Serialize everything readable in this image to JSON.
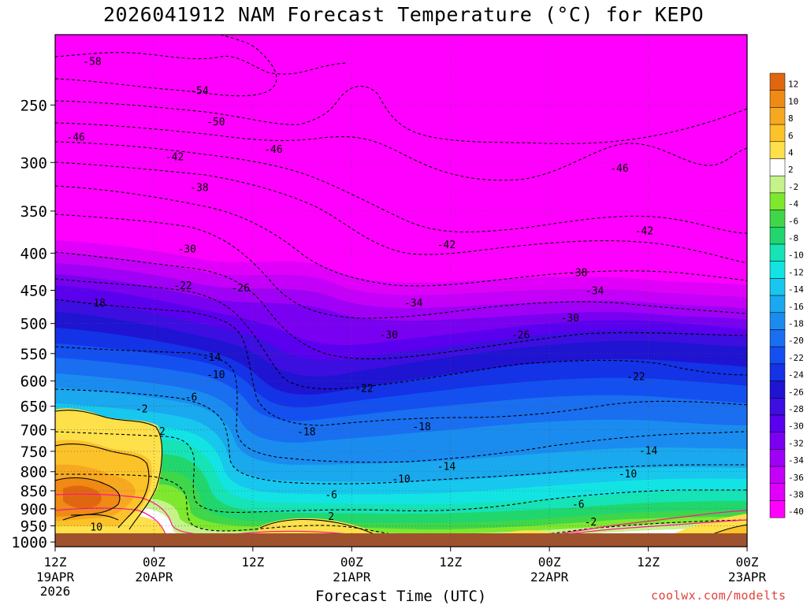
{
  "chart_data": {
    "type": "time-height contour (filled)",
    "title": "2026041912 NAM Forecast Temperature (°C) for KEPO",
    "xlabel": "Forecast Time (UTC)",
    "ylabel": "Pressure (hPa)",
    "y_ticks": [
      250,
      300,
      350,
      400,
      450,
      500,
      550,
      600,
      650,
      700,
      750,
      800,
      850,
      900,
      950,
      1000
    ],
    "ylim": [
      1015,
      200
    ],
    "x_ticks": [
      {
        "hour": 0,
        "line1": "12Z",
        "line2": "19APR",
        "line3": "2026"
      },
      {
        "hour": 12,
        "line1": "00Z",
        "line2": "20APR"
      },
      {
        "hour": 24,
        "line1": "12Z",
        "line2": ""
      },
      {
        "hour": 36,
        "line1": "00Z",
        "line2": "21APR"
      },
      {
        "hour": 48,
        "line1": "12Z",
        "line2": ""
      },
      {
        "hour": 60,
        "line1": "00Z",
        "line2": "22APR"
      },
      {
        "hour": 72,
        "line1": "12Z",
        "line2": ""
      },
      {
        "hour": 84,
        "line1": "00Z",
        "line2": "23APR"
      }
    ],
    "xlim": [
      0,
      84
    ],
    "colorbar": {
      "levels": [
        "12",
        "10",
        "8",
        "6",
        "4",
        "2",
        "-2",
        "-4",
        "-6",
        "-8",
        "-10",
        "-12",
        "-14",
        "-16",
        "-18",
        "-20",
        "-22",
        "-24",
        "-26",
        "-28",
        "-30",
        "-32",
        "-34",
        "-36",
        "-38",
        "-40"
      ],
      "colors": [
        "#e0670f",
        "#ef8a14",
        "#f6a820",
        "#fbc22a",
        "#fde04a",
        "#ffffff",
        "#c6f28a",
        "#7ee82e",
        "#3fd64a",
        "#21d66d",
        "#16e3b6",
        "#14e3e3",
        "#17c7ee",
        "#1aa8ee",
        "#1a8cf0",
        "#1a6ef0",
        "#1450f0",
        "#1432e6",
        "#1e14d2",
        "#3c0ee0",
        "#5a00ee",
        "#7a00f2",
        "#a000f6",
        "#c400f8",
        "#e000fa",
        "#ff00ff"
      ]
    },
    "contour_labels": [
      {
        "text": "-58",
        "hour": 4.5,
        "p": 218
      },
      {
        "text": "-54",
        "hour": 17.5,
        "p": 239
      },
      {
        "text": "-50",
        "hour": 19.5,
        "p": 264
      },
      {
        "text": "-46",
        "hour": 2.5,
        "p": 277
      },
      {
        "text": "-46",
        "hour": 26.5,
        "p": 288
      },
      {
        "text": "-46",
        "hour": 68.5,
        "p": 306
      },
      {
        "text": "-42",
        "hour": 14.5,
        "p": 295
      },
      {
        "text": "-42",
        "hour": 47.5,
        "p": 390
      },
      {
        "text": "-42",
        "hour": 71.5,
        "p": 373
      },
      {
        "text": "-38",
        "hour": 17.5,
        "p": 325
      },
      {
        "text": "-38",
        "hour": 63.5,
        "p": 426
      },
      {
        "text": "-34",
        "hour": 43.5,
        "p": 469
      },
      {
        "text": "-34",
        "hour": 65.5,
        "p": 451
      },
      {
        "text": "-30",
        "hour": 16.0,
        "p": 395
      },
      {
        "text": "-30",
        "hour": 40.5,
        "p": 519
      },
      {
        "text": "-30",
        "hour": 62.5,
        "p": 492
      },
      {
        "text": "-26",
        "hour": 22.5,
        "p": 447
      },
      {
        "text": "-26",
        "hour": 56.5,
        "p": 519
      },
      {
        "text": "-22",
        "hour": 15.5,
        "p": 444
      },
      {
        "text": "-22",
        "hour": 37.5,
        "p": 615
      },
      {
        "text": "-22",
        "hour": 70.5,
        "p": 592
      },
      {
        "text": "-18",
        "hour": 5.0,
        "p": 469
      },
      {
        "text": "-18",
        "hour": 30.5,
        "p": 706
      },
      {
        "text": "-18",
        "hour": 44.5,
        "p": 694
      },
      {
        "text": "-14",
        "hour": 19.0,
        "p": 557
      },
      {
        "text": "-14",
        "hour": 47.5,
        "p": 788
      },
      {
        "text": "-14",
        "hour": 72.0,
        "p": 749
      },
      {
        "text": "-10",
        "hour": 19.5,
        "p": 589
      },
      {
        "text": "-10",
        "hour": 42.0,
        "p": 820
      },
      {
        "text": "-10",
        "hour": 69.5,
        "p": 807
      },
      {
        "text": "-6",
        "hour": 16.5,
        "p": 632
      },
      {
        "text": "-6",
        "hour": 33.5,
        "p": 862
      },
      {
        "text": "-6",
        "hour": 63.5,
        "p": 888
      },
      {
        "text": "-2",
        "hour": 10.5,
        "p": 656
      },
      {
        "text": "-2",
        "hour": 65.0,
        "p": 939
      },
      {
        "text": "2",
        "hour": 13.0,
        "p": 705
      },
      {
        "text": "2",
        "hour": 33.5,
        "p": 923
      },
      {
        "text": "10",
        "hour": 5.0,
        "p": 955
      }
    ]
  },
  "credit": "coolwx.com/modelts"
}
